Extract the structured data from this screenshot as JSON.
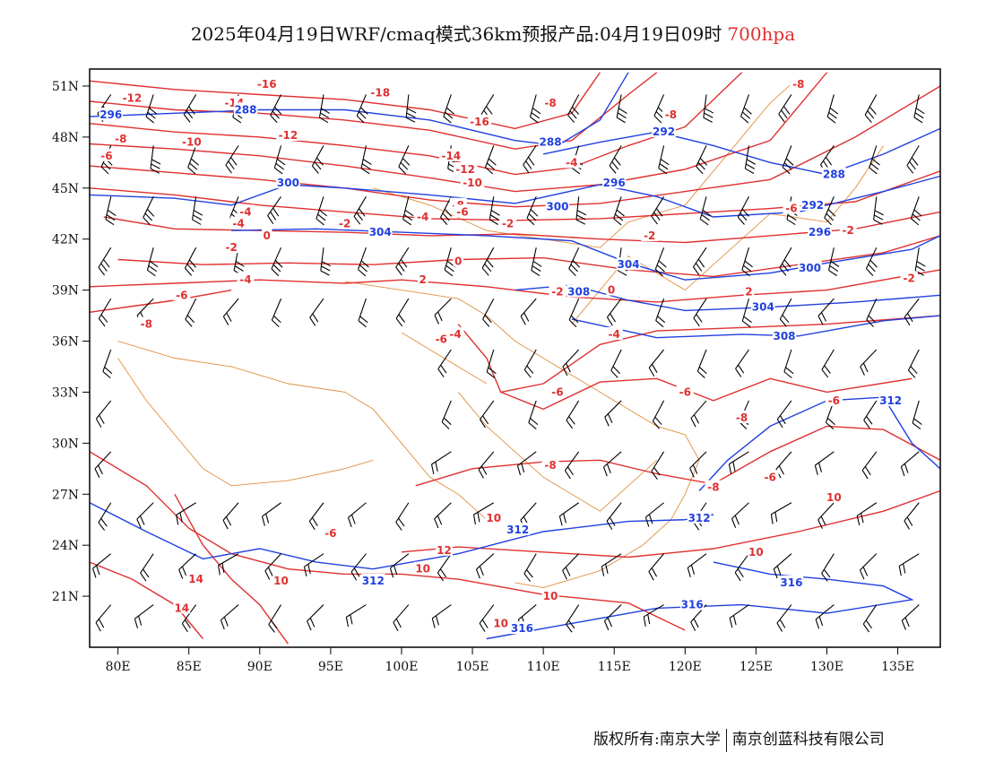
{
  "title": {
    "main": "2025年04月19日WRF/cmaq模式36km预报产品:04月19日09时",
    "level": "700hpa"
  },
  "axes": {
    "lat_labels": [
      "51N",
      "48N",
      "45N",
      "42N",
      "39N",
      "36N",
      "33N",
      "30N",
      "27N",
      "24N",
      "21N"
    ],
    "lat_values": [
      51,
      48,
      45,
      42,
      39,
      36,
      33,
      30,
      27,
      24,
      21
    ],
    "lon_labels": [
      "80E",
      "85E",
      "90E",
      "95E",
      "100E",
      "105E",
      "110E",
      "115E",
      "120E",
      "125E",
      "130E",
      "135E"
    ],
    "lon_values": [
      80,
      85,
      90,
      95,
      100,
      105,
      110,
      115,
      120,
      125,
      130,
      135
    ],
    "lon_range": [
      78,
      138
    ],
    "lat_range": [
      18,
      52
    ]
  },
  "colors": {
    "height": "#2040e0",
    "temperature": "#e03030",
    "borders": "#e09040",
    "barbs": "#000000",
    "frame": "#000000"
  },
  "height_contours": {
    "levels": [
      288,
      292,
      296,
      300,
      304,
      308,
      312,
      316
    ],
    "labels": [
      {
        "text": "296",
        "lon": 79.5,
        "lat": 49.3
      },
      {
        "text": "288",
        "lon": 89,
        "lat": 49.6
      },
      {
        "text": "288",
        "lon": 110.5,
        "lat": 47.7
      },
      {
        "text": "292",
        "lon": 118.5,
        "lat": 48.3
      },
      {
        "text": "288",
        "lon": 130.5,
        "lat": 45.8
      },
      {
        "text": "300",
        "lon": 92,
        "lat": 45.3
      },
      {
        "text": "296",
        "lon": 115,
        "lat": 45.3
      },
      {
        "text": "300",
        "lon": 111,
        "lat": 43.9
      },
      {
        "text": "292",
        "lon": 129,
        "lat": 44.0
      },
      {
        "text": "304",
        "lon": 98.5,
        "lat": 42.4
      },
      {
        "text": "296",
        "lon": 129.5,
        "lat": 42.4
      },
      {
        "text": "304",
        "lon": 116,
        "lat": 40.5
      },
      {
        "text": "300",
        "lon": 128.8,
        "lat": 40.3
      },
      {
        "text": "308",
        "lon": 112.5,
        "lat": 38.9
      },
      {
        "text": "304",
        "lon": 125.5,
        "lat": 38.0
      },
      {
        "text": "308",
        "lon": 127,
        "lat": 36.3
      },
      {
        "text": "312",
        "lon": 134.5,
        "lat": 32.5
      },
      {
        "text": "312",
        "lon": 108.2,
        "lat": 24.9
      },
      {
        "text": "312",
        "lon": 121,
        "lat": 25.6
      },
      {
        "text": "312",
        "lon": 98,
        "lat": 21.9
      },
      {
        "text": "316",
        "lon": 127.5,
        "lat": 21.8
      },
      {
        "text": "316",
        "lon": 120.5,
        "lat": 20.5
      },
      {
        "text": "316",
        "lon": 108.5,
        "lat": 19.1
      }
    ]
  },
  "temperature_contours": {
    "levels": [
      -18,
      -16,
      -14,
      -12,
      -10,
      -8,
      -6,
      -4,
      -2,
      0,
      2,
      4,
      6,
      8,
      10,
      12,
      14
    ],
    "labels": [
      {
        "text": "-12",
        "lon": 81,
        "lat": 50.3
      },
      {
        "text": "-16",
        "lon": 90.5,
        "lat": 51.1
      },
      {
        "text": "-18",
        "lon": 98.5,
        "lat": 50.6
      },
      {
        "text": "-14",
        "lon": 88.2,
        "lat": 50.0
      },
      {
        "text": "-12",
        "lon": 92,
        "lat": 48.1
      },
      {
        "text": "-10",
        "lon": 85.2,
        "lat": 47.7
      },
      {
        "text": "-8",
        "lon": 80.2,
        "lat": 47.9
      },
      {
        "text": "-6",
        "lon": 79.2,
        "lat": 46.9
      },
      {
        "text": "-16",
        "lon": 105.5,
        "lat": 48.9
      },
      {
        "text": "-8",
        "lon": 110.5,
        "lat": 50.0
      },
      {
        "text": "-8",
        "lon": 119,
        "lat": 49.3
      },
      {
        "text": "-8",
        "lon": 128,
        "lat": 51.1
      },
      {
        "text": "-14",
        "lon": 103.5,
        "lat": 46.9
      },
      {
        "text": "-12",
        "lon": 104.5,
        "lat": 46.1
      },
      {
        "text": "-10",
        "lon": 105,
        "lat": 45.3
      },
      {
        "text": "-8",
        "lon": 104,
        "lat": 44.0
      },
      {
        "text": "-4",
        "lon": 112,
        "lat": 46.5
      },
      {
        "text": "-6",
        "lon": 104.3,
        "lat": 43.6
      },
      {
        "text": "-4",
        "lon": 89,
        "lat": 43.6
      },
      {
        "text": "-4",
        "lon": 101.5,
        "lat": 43.3
      },
      {
        "text": "-2",
        "lon": 96,
        "lat": 42.9
      },
      {
        "text": "-2",
        "lon": 107.5,
        "lat": 42.9
      },
      {
        "text": "-2",
        "lon": 117.5,
        "lat": 42.2
      },
      {
        "text": "-2",
        "lon": 131.5,
        "lat": 42.5
      },
      {
        "text": "-6",
        "lon": 127.5,
        "lat": 43.8
      },
      {
        "text": "-4",
        "lon": 88.5,
        "lat": 42.9
      },
      {
        "text": "0",
        "lon": 90.5,
        "lat": 42.2
      },
      {
        "text": "-2",
        "lon": 88,
        "lat": 41.5
      },
      {
        "text": "0",
        "lon": 104,
        "lat": 40.7
      },
      {
        "text": "-2",
        "lon": 135.8,
        "lat": 39.7
      },
      {
        "text": "-4",
        "lon": 89,
        "lat": 39.6
      },
      {
        "text": "2",
        "lon": 101.5,
        "lat": 39.6
      },
      {
        "text": "0",
        "lon": 114.8,
        "lat": 39.0
      },
      {
        "text": "-6",
        "lon": 84.5,
        "lat": 38.7
      },
      {
        "text": "-8",
        "lon": 82,
        "lat": 37.0
      },
      {
        "text": "-2",
        "lon": 111,
        "lat": 38.9
      },
      {
        "text": "2",
        "lon": 124.5,
        "lat": 38.9
      },
      {
        "text": "-4",
        "lon": 103.8,
        "lat": 36.4
      },
      {
        "text": "-6",
        "lon": 102.8,
        "lat": 36.1
      },
      {
        "text": "-4",
        "lon": 115,
        "lat": 36.4
      },
      {
        "text": "-6",
        "lon": 111,
        "lat": 33.0
      },
      {
        "text": "-6",
        "lon": 120,
        "lat": 33.0
      },
      {
        "text": "-6",
        "lon": 130.5,
        "lat": 32.5
      },
      {
        "text": "-8",
        "lon": 124,
        "lat": 31.5
      },
      {
        "text": "-8",
        "lon": 110.5,
        "lat": 28.7
      },
      {
        "text": "-8",
        "lon": 122,
        "lat": 27.4
      },
      {
        "text": "-6",
        "lon": 126,
        "lat": 28.0
      },
      {
        "text": "10",
        "lon": 130.5,
        "lat": 26.8
      },
      {
        "text": "-6",
        "lon": 95,
        "lat": 24.7
      },
      {
        "text": "10",
        "lon": 106.5,
        "lat": 25.6
      },
      {
        "text": "12",
        "lon": 103,
        "lat": 23.7
      },
      {
        "text": "10",
        "lon": 125,
        "lat": 23.6
      },
      {
        "text": "14",
        "lon": 85.5,
        "lat": 22.0
      },
      {
        "text": "10",
        "lon": 91.5,
        "lat": 21.9
      },
      {
        "text": "10",
        "lon": 101.5,
        "lat": 22.6
      },
      {
        "text": "10",
        "lon": 110.5,
        "lat": 21.0
      },
      {
        "text": "14",
        "lon": 84.5,
        "lat": 20.3
      },
      {
        "text": "10",
        "lon": 107,
        "lat": 19.4
      }
    ]
  },
  "wind_barbs": {
    "description_units": "barbs",
    "grid_lon": [
      79.5,
      82.5,
      85.5,
      88.5,
      91.5,
      94.5,
      97.5,
      100.5,
      103.5,
      106.5,
      109.5,
      112.5,
      115.5,
      118.5,
      121.5,
      124.5,
      127.5,
      130.5,
      133.5,
      136.5
    ],
    "grid_lat": [
      50.5,
      47.5,
      44.5,
      41.5,
      38.5,
      35.5,
      32.5,
      29.5,
      26.5,
      23.5,
      20.5
    ]
  },
  "footer": {
    "copyright": "版权所有:南京大学",
    "company": "南京创蓝科技有限公司"
  }
}
